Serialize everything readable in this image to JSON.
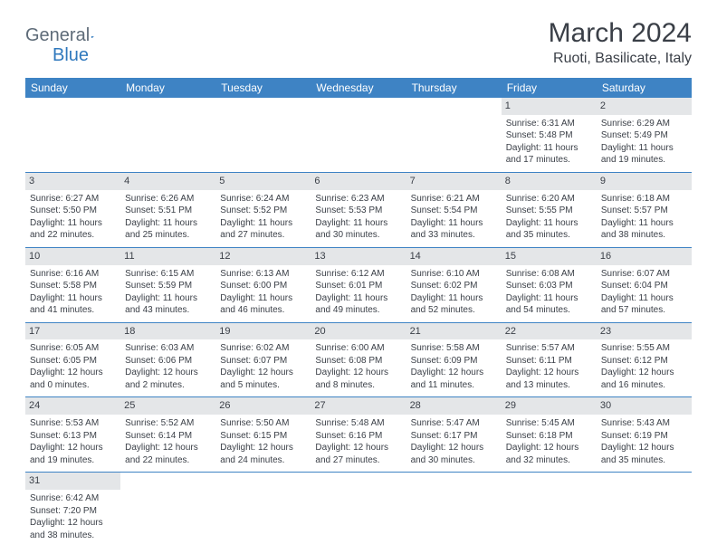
{
  "logo": {
    "text1": "General",
    "text2": "Blue"
  },
  "title": "March 2024",
  "location": "Ruoti, Basilicate, Italy",
  "colors": {
    "header_bg": "#3e83c4",
    "header_text": "#ffffff",
    "daynum_bg": "#e4e6e8",
    "text": "#3a3f47",
    "logo_gray": "#5e6b78",
    "logo_blue": "#2f78bd",
    "rule": "#3e83c4",
    "background": "#ffffff"
  },
  "day_headers": [
    "Sunday",
    "Monday",
    "Tuesday",
    "Wednesday",
    "Thursday",
    "Friday",
    "Saturday"
  ],
  "weeks": [
    [
      {
        "n": "",
        "sr": "",
        "ss": "",
        "dl": ""
      },
      {
        "n": "",
        "sr": "",
        "ss": "",
        "dl": ""
      },
      {
        "n": "",
        "sr": "",
        "ss": "",
        "dl": ""
      },
      {
        "n": "",
        "sr": "",
        "ss": "",
        "dl": ""
      },
      {
        "n": "",
        "sr": "",
        "ss": "",
        "dl": ""
      },
      {
        "n": "1",
        "sr": "Sunrise: 6:31 AM",
        "ss": "Sunset: 5:48 PM",
        "dl": "Daylight: 11 hours and 17 minutes."
      },
      {
        "n": "2",
        "sr": "Sunrise: 6:29 AM",
        "ss": "Sunset: 5:49 PM",
        "dl": "Daylight: 11 hours and 19 minutes."
      }
    ],
    [
      {
        "n": "3",
        "sr": "Sunrise: 6:27 AM",
        "ss": "Sunset: 5:50 PM",
        "dl": "Daylight: 11 hours and 22 minutes."
      },
      {
        "n": "4",
        "sr": "Sunrise: 6:26 AM",
        "ss": "Sunset: 5:51 PM",
        "dl": "Daylight: 11 hours and 25 minutes."
      },
      {
        "n": "5",
        "sr": "Sunrise: 6:24 AM",
        "ss": "Sunset: 5:52 PM",
        "dl": "Daylight: 11 hours and 27 minutes."
      },
      {
        "n": "6",
        "sr": "Sunrise: 6:23 AM",
        "ss": "Sunset: 5:53 PM",
        "dl": "Daylight: 11 hours and 30 minutes."
      },
      {
        "n": "7",
        "sr": "Sunrise: 6:21 AM",
        "ss": "Sunset: 5:54 PM",
        "dl": "Daylight: 11 hours and 33 minutes."
      },
      {
        "n": "8",
        "sr": "Sunrise: 6:20 AM",
        "ss": "Sunset: 5:55 PM",
        "dl": "Daylight: 11 hours and 35 minutes."
      },
      {
        "n": "9",
        "sr": "Sunrise: 6:18 AM",
        "ss": "Sunset: 5:57 PM",
        "dl": "Daylight: 11 hours and 38 minutes."
      }
    ],
    [
      {
        "n": "10",
        "sr": "Sunrise: 6:16 AM",
        "ss": "Sunset: 5:58 PM",
        "dl": "Daylight: 11 hours and 41 minutes."
      },
      {
        "n": "11",
        "sr": "Sunrise: 6:15 AM",
        "ss": "Sunset: 5:59 PM",
        "dl": "Daylight: 11 hours and 43 minutes."
      },
      {
        "n": "12",
        "sr": "Sunrise: 6:13 AM",
        "ss": "Sunset: 6:00 PM",
        "dl": "Daylight: 11 hours and 46 minutes."
      },
      {
        "n": "13",
        "sr": "Sunrise: 6:12 AM",
        "ss": "Sunset: 6:01 PM",
        "dl": "Daylight: 11 hours and 49 minutes."
      },
      {
        "n": "14",
        "sr": "Sunrise: 6:10 AM",
        "ss": "Sunset: 6:02 PM",
        "dl": "Daylight: 11 hours and 52 minutes."
      },
      {
        "n": "15",
        "sr": "Sunrise: 6:08 AM",
        "ss": "Sunset: 6:03 PM",
        "dl": "Daylight: 11 hours and 54 minutes."
      },
      {
        "n": "16",
        "sr": "Sunrise: 6:07 AM",
        "ss": "Sunset: 6:04 PM",
        "dl": "Daylight: 11 hours and 57 minutes."
      }
    ],
    [
      {
        "n": "17",
        "sr": "Sunrise: 6:05 AM",
        "ss": "Sunset: 6:05 PM",
        "dl": "Daylight: 12 hours and 0 minutes."
      },
      {
        "n": "18",
        "sr": "Sunrise: 6:03 AM",
        "ss": "Sunset: 6:06 PM",
        "dl": "Daylight: 12 hours and 2 minutes."
      },
      {
        "n": "19",
        "sr": "Sunrise: 6:02 AM",
        "ss": "Sunset: 6:07 PM",
        "dl": "Daylight: 12 hours and 5 minutes."
      },
      {
        "n": "20",
        "sr": "Sunrise: 6:00 AM",
        "ss": "Sunset: 6:08 PM",
        "dl": "Daylight: 12 hours and 8 minutes."
      },
      {
        "n": "21",
        "sr": "Sunrise: 5:58 AM",
        "ss": "Sunset: 6:09 PM",
        "dl": "Daylight: 12 hours and 11 minutes."
      },
      {
        "n": "22",
        "sr": "Sunrise: 5:57 AM",
        "ss": "Sunset: 6:11 PM",
        "dl": "Daylight: 12 hours and 13 minutes."
      },
      {
        "n": "23",
        "sr": "Sunrise: 5:55 AM",
        "ss": "Sunset: 6:12 PM",
        "dl": "Daylight: 12 hours and 16 minutes."
      }
    ],
    [
      {
        "n": "24",
        "sr": "Sunrise: 5:53 AM",
        "ss": "Sunset: 6:13 PM",
        "dl": "Daylight: 12 hours and 19 minutes."
      },
      {
        "n": "25",
        "sr": "Sunrise: 5:52 AM",
        "ss": "Sunset: 6:14 PM",
        "dl": "Daylight: 12 hours and 22 minutes."
      },
      {
        "n": "26",
        "sr": "Sunrise: 5:50 AM",
        "ss": "Sunset: 6:15 PM",
        "dl": "Daylight: 12 hours and 24 minutes."
      },
      {
        "n": "27",
        "sr": "Sunrise: 5:48 AM",
        "ss": "Sunset: 6:16 PM",
        "dl": "Daylight: 12 hours and 27 minutes."
      },
      {
        "n": "28",
        "sr": "Sunrise: 5:47 AM",
        "ss": "Sunset: 6:17 PM",
        "dl": "Daylight: 12 hours and 30 minutes."
      },
      {
        "n": "29",
        "sr": "Sunrise: 5:45 AM",
        "ss": "Sunset: 6:18 PM",
        "dl": "Daylight: 12 hours and 32 minutes."
      },
      {
        "n": "30",
        "sr": "Sunrise: 5:43 AM",
        "ss": "Sunset: 6:19 PM",
        "dl": "Daylight: 12 hours and 35 minutes."
      }
    ],
    [
      {
        "n": "31",
        "sr": "Sunrise: 6:42 AM",
        "ss": "Sunset: 7:20 PM",
        "dl": "Daylight: 12 hours and 38 minutes."
      },
      {
        "n": "",
        "sr": "",
        "ss": "",
        "dl": ""
      },
      {
        "n": "",
        "sr": "",
        "ss": "",
        "dl": ""
      },
      {
        "n": "",
        "sr": "",
        "ss": "",
        "dl": ""
      },
      {
        "n": "",
        "sr": "",
        "ss": "",
        "dl": ""
      },
      {
        "n": "",
        "sr": "",
        "ss": "",
        "dl": ""
      },
      {
        "n": "",
        "sr": "",
        "ss": "",
        "dl": ""
      }
    ]
  ]
}
